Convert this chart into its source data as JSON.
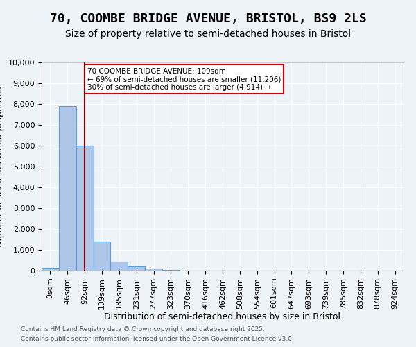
{
  "title": "70, COOMBE BRIDGE AVENUE, BRISTOL, BS9 2LS",
  "subtitle": "Size of property relative to semi-detached houses in Bristol",
  "xlabel": "Distribution of semi-detached houses by size in Bristol",
  "ylabel": "Number of semi-detached properties",
  "footnote1": "Contains HM Land Registry data © Crown copyright and database right 2025.",
  "footnote2": "Contains public sector information licensed under the Open Government Licence v3.0.",
  "bin_labels": [
    "0sqm",
    "46sqm",
    "92sqm",
    "139sqm",
    "185sqm",
    "231sqm",
    "277sqm",
    "323sqm",
    "370sqm",
    "416sqm",
    "462sqm",
    "508sqm",
    "554sqm",
    "601sqm",
    "647sqm",
    "693sqm",
    "739sqm",
    "785sqm",
    "832sqm",
    "878sqm",
    "924sqm"
  ],
  "bar_values": [
    150,
    7900,
    6000,
    1400,
    450,
    200,
    100,
    50,
    10,
    0,
    0,
    0,
    0,
    0,
    0,
    0,
    0,
    0,
    0,
    0,
    0
  ],
  "bar_color": "#aec6e8",
  "bar_edge_color": "#5a9fd4",
  "property_size": 109,
  "property_bin_index": 2,
  "vline_color": "#8b0000",
  "annotation_text": "70 COOMBE BRIDGE AVENUE: 109sqm\n← 69% of semi-detached houses are smaller (11,206)\n30% of semi-detached houses are larger (4,914) →",
  "annotation_box_color": "#ffffff",
  "annotation_border_color": "#cc0000",
  "bin_width": 46,
  "ylim": [
    0,
    10000
  ],
  "background_color": "#eef3f8",
  "plot_bg_color": "#eef3f8",
  "title_fontsize": 13,
  "subtitle_fontsize": 10,
  "tick_fontsize": 8,
  "label_fontsize": 9
}
